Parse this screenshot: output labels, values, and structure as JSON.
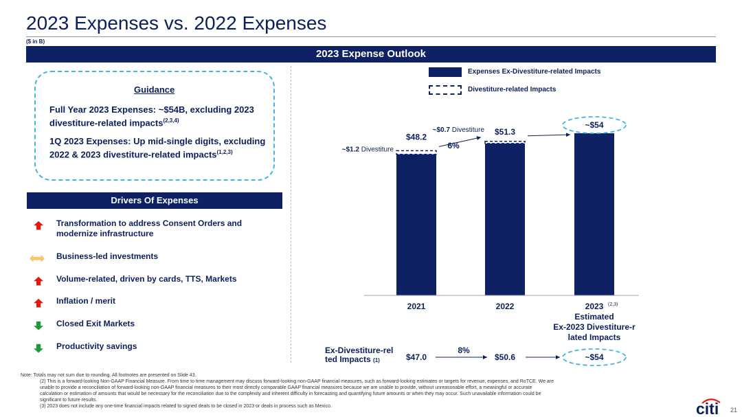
{
  "title": "2023 Expenses vs. 2022 Expenses",
  "unit_note": "($ in B)",
  "banner": "2023 Expense Outlook",
  "guidance": {
    "heading": "Guidance",
    "item1_text": "Full Year 2023 Expenses: ~$54B, excluding 2023 divestiture-related impacts",
    "item1_sup": "(2,3,4)",
    "item2_text": "1Q 2023 Expenses: Up mid-single digits, excluding 2022 & 2023 divestiture-related impacts",
    "item2_sup": "(1,2,3)"
  },
  "drivers": {
    "heading": "Drivers Of Expenses",
    "items": [
      {
        "label": "Transformation to address Consent Orders and modernize infrastructure",
        "direction": "up",
        "color": "#e8160c"
      },
      {
        "label": "Business-led investments",
        "direction": "neutral",
        "color": "#f7c66b"
      },
      {
        "label": "Volume-related, driven by cards, TTS, Markets",
        "direction": "up",
        "color": "#e8160c"
      },
      {
        "label": "Inflation / merit",
        "direction": "up",
        "color": "#e8160c"
      },
      {
        "label": "Closed Exit Markets",
        "direction": "down",
        "color": "#1f9a3a"
      },
      {
        "label": "Productivity savings",
        "direction": "down",
        "color": "#1f9a3a"
      }
    ]
  },
  "legend": {
    "solid": "Expenses Ex-Divestiture-related Impacts",
    "dashed": "Divestiture-related Impacts"
  },
  "chart_data": {
    "type": "bar",
    "categories": [
      "2021",
      "2022",
      "2023"
    ],
    "series": [
      {
        "name": "Expenses Ex-Divestiture-related Impacts",
        "values": [
          47.0,
          50.6,
          54
        ]
      },
      {
        "name": "Divestiture-related Impacts",
        "values": [
          1.2,
          0.7,
          0
        ]
      }
    ],
    "total_labels": [
      "$48.2",
      "$51.3",
      "~$54"
    ],
    "divestiture_labels": [
      {
        "value": "~$1.2",
        "text": "Divestiture"
      },
      {
        "value": "~$0.7",
        "text": "Divestiture"
      }
    ],
    "growth_labels": [
      "6%"
    ],
    "category_3_sup": "(2,3)",
    "category_3_caption": "Estimated Ex-2023 Divestiture-related Impacts",
    "ex_divestiture": {
      "label": "Ex-Divestiture-related Impacts",
      "label_sup": "(1)",
      "values": [
        "$47.0",
        "$50.6",
        "~$54"
      ],
      "growth": "8%"
    },
    "ylim": [
      0,
      60
    ]
  },
  "notes": {
    "lines": [
      "Note:  Totals may not sum due to rounding. All footnotes are presented on Slide 43.",
      "(2) This is a forward-looking Non-GAAP Financial Measure. From time to time management may discuss forward-looking non-GAAP financial measures, such as forward-looking estimates or targets for revenue, expenses, and RoTCE. We are",
      "unable to provide a reconciliation of forward-looking non-GAAP financial measures to their most directly comparable GAAP financial measures because we are unable to provide, without unreasonable effort, a meaningful or accurate",
      "calculation or estimation of amounts that would be necessary for the reconciliation due to the complexity and inherent difficulty in forecasting and quantifying future amounts or when they may occur. Such unavailable information could be",
      "significant to future results.",
      "(3) 2023 does not include any one-time financial impacts related to signed deals to be closed in 2023 or deals in process such as Mexico."
    ]
  },
  "logo_text": "citi",
  "page_number": "21"
}
